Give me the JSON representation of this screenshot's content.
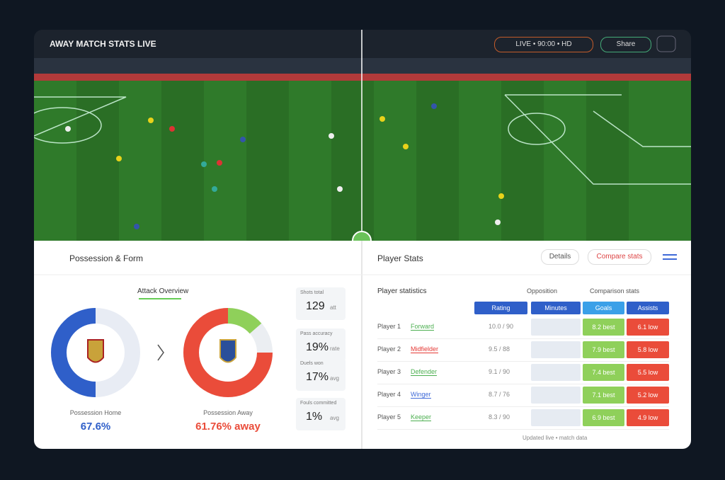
{
  "header": {
    "title": "AWAY MATCH STATS LIVE",
    "live_button": "LIVE • 90:00 • HD",
    "share_button": "Share"
  },
  "overview": {
    "title": "Possession & Form",
    "subtitle": "Attack Overview",
    "donuts": [
      {
        "label": "Possession Home",
        "value": "67.6%"
      },
      {
        "label": "Possession Away",
        "value": "61.76% away"
      }
    ],
    "stats": [
      {
        "label": "Shots total",
        "value": "129",
        "unit": "att"
      },
      {
        "label": "Pass accuracy",
        "value": "19%",
        "unit": "rate"
      },
      {
        "label": "Duels won",
        "value": "17%",
        "unit": "avg"
      },
      {
        "label": "Fouls committed",
        "value": "1%",
        "unit": "avg"
      }
    ]
  },
  "table": {
    "title": "Player Stats",
    "buttons": [
      "Details",
      "Compare stats"
    ],
    "section": "Player statistics",
    "groups": [
      "Opposition",
      "Comparison stats"
    ],
    "columns": [
      "Rating",
      "Minutes",
      "Goals",
      "Assists"
    ],
    "rows": [
      {
        "name": "Player 1",
        "tag": "Forward",
        "color": "#4caf50",
        "stat": "10.0 / 90",
        "good": "8.2 best",
        "bad": "6.1 low"
      },
      {
        "name": "Player 2",
        "tag": "Midfielder",
        "color": "#e53935",
        "stat": "9.5 / 88",
        "good": "7.9 best",
        "bad": "5.8 low"
      },
      {
        "name": "Player 3",
        "tag": "Defender",
        "color": "#4caf50",
        "stat": "9.1 / 90",
        "good": "7.4 best",
        "bad": "5.5 low"
      },
      {
        "name": "Player 4",
        "tag": "Winger",
        "color": "#3f6ad8",
        "stat": "8.7 / 76",
        "good": "7.1 best",
        "bad": "5.2 low"
      },
      {
        "name": "Player 5",
        "tag": "Keeper",
        "color": "#4caf50",
        "stat": "8.3 / 90",
        "good": "6.9 best",
        "bad": "4.9 low"
      }
    ],
    "footer": "Updated live • match data"
  }
}
